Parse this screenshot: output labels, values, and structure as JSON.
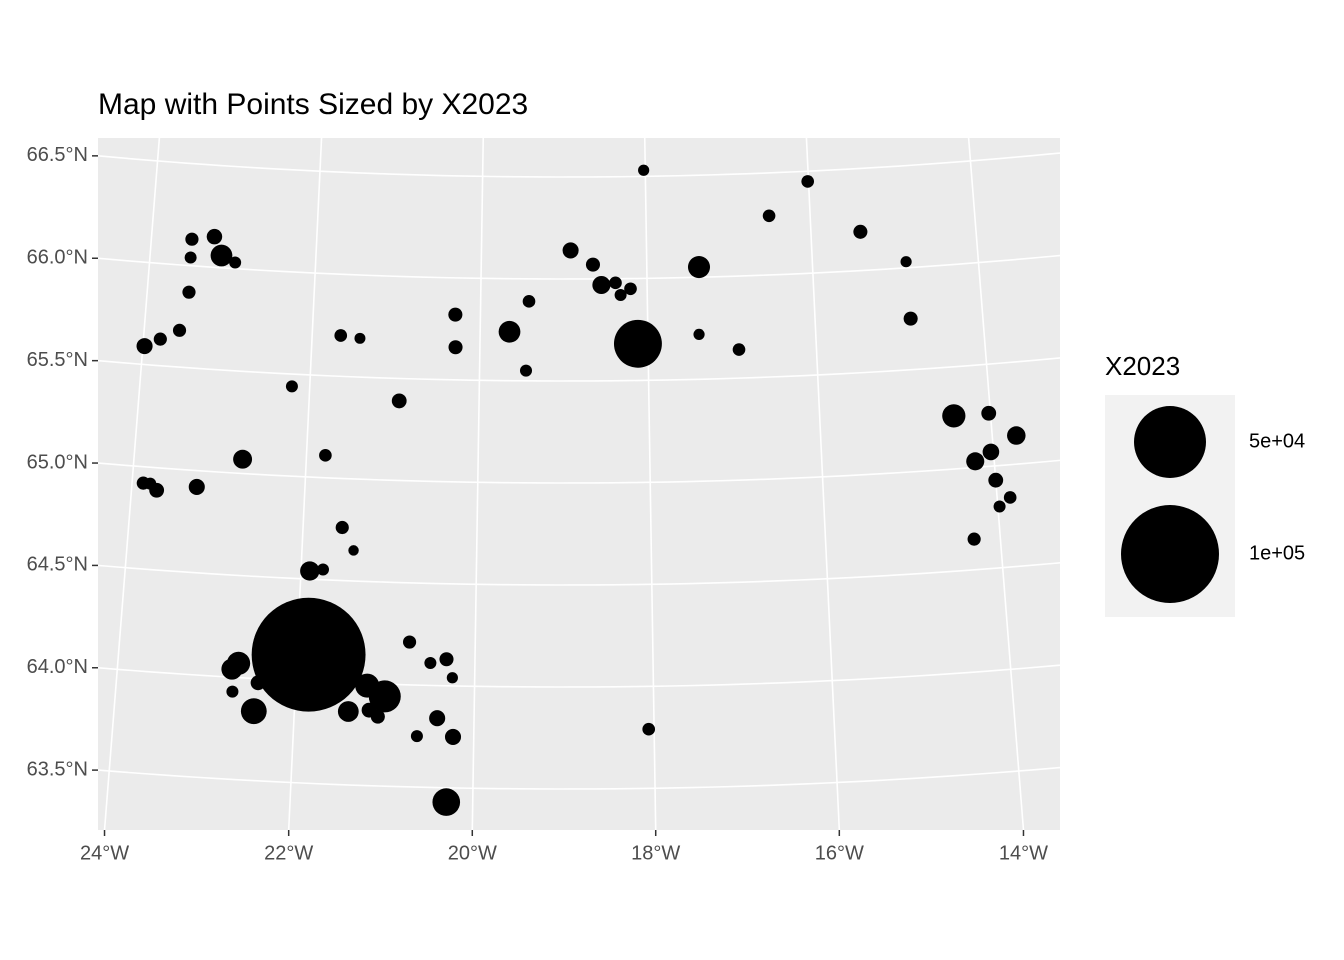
{
  "chart_data": {
    "type": "scatter",
    "title": "Map with Points Sized by X2023",
    "x": [
      -18.02,
      -16.01,
      -16.5,
      -15.4,
      -14.87,
      -14.86,
      -17.37,
      -18.92,
      -18.65,
      -18.55,
      -18.38,
      -18.32,
      -18.2,
      -19.42,
      -19.65,
      -19.45,
      -18.12,
      -17.39,
      -16.92,
      -20.3,
      -20.29,
      -21.66,
      -21.43,
      -20.94,
      -22.21,
      -23.51,
      -23.51,
      -23.5,
      -23.24,
      -23.14,
      -22.97,
      -23.58,
      -23.8,
      -23.98,
      -22.74,
      -21.78,
      -23.25,
      -23.87,
      -23.79,
      -23.71,
      -21.55,
      -21.41,
      -21.9,
      -21.75,
      -21.87,
      -22.65,
      -22.72,
      -22.42,
      -22.7,
      -22.45,
      -21.4,
      -21.2,
      -21.0,
      -21.17,
      -21.07,
      -20.74,
      -20.5,
      -20.32,
      -20.25,
      -20.41,
      -20.63,
      -20.23,
      -20.29,
      -18.06,
      -14.43,
      -14.02,
      -13.72,
      -14.22,
      -14.03,
      -14.0,
      -13.85,
      -13.98,
      -14.3
    ],
    "y": [
      66.53,
      66.45,
      66.29,
      66.19,
      66.03,
      65.75,
      66.05,
      66.14,
      66.07,
      65.97,
      65.98,
      65.92,
      65.95,
      65.89,
      65.74,
      65.55,
      65.68,
      65.72,
      65.64,
      65.82,
      65.66,
      65.7,
      65.69,
      65.39,
      65.44,
      66.13,
      66.04,
      65.87,
      66.15,
      66.06,
      66.03,
      65.68,
      65.63,
      65.59,
      65.07,
      65.11,
      64.92,
      64.92,
      64.92,
      64.89,
      64.76,
      64.65,
      64.54,
      64.55,
      64.13,
      64.07,
      64.04,
      63.98,
      63.93,
      63.84,
      63.86,
      63.99,
      63.94,
      63.87,
      63.84,
      64.21,
      64.11,
      64.13,
      64.04,
      63.84,
      63.75,
      63.75,
      63.43,
      63.79,
      65.26,
      65.26,
      65.14,
      65.03,
      65.07,
      64.93,
      64.84,
      64.8,
      64.65
    ],
    "sizes": [
      50,
      150,
      150,
      300,
      50,
      300,
      2100,
      600,
      300,
      1000,
      150,
      100,
      150,
      150,
      2000,
      100,
      19000,
      50,
      150,
      300,
      300,
      150,
      40,
      400,
      100,
      200,
      100,
      200,
      500,
      2000,
      100,
      200,
      200,
      600,
      1200,
      150,
      600,
      200,
      100,
      400,
      200,
      20,
      1300,
      100,
      139000,
      2500,
      1800,
      400,
      100,
      3500,
      1700,
      2800,
      6600,
      400,
      300,
      200,
      100,
      300,
      50,
      600,
      100,
      600,
      4300,
      150,
      2500,
      400,
      1100,
      1000,
      700,
      400,
      150,
      100,
      200
    ],
    "color": "#000000",
    "xlim": [
      -24.1,
      -13.6
    ],
    "ylim": [
      63.2,
      66.6
    ],
    "xticks": [
      {
        "value": -24,
        "label": "24°W"
      },
      {
        "value": -22,
        "label": "22°W"
      },
      {
        "value": -20,
        "label": "20°W"
      },
      {
        "value": -18,
        "label": "18°W"
      },
      {
        "value": -16,
        "label": "16°W"
      },
      {
        "value": -14,
        "label": "14°W"
      }
    ],
    "yticks": [
      {
        "value": 63.5,
        "label": "63.5°N"
      },
      {
        "value": 64,
        "label": "64.0°N"
      },
      {
        "value": 64.5,
        "label": "64.5°N"
      },
      {
        "value": 65,
        "label": "65.0°N"
      },
      {
        "value": 65.5,
        "label": "65.5°N"
      },
      {
        "value": 66,
        "label": "66.0°N"
      },
      {
        "value": 66.5,
        "label": "66.5°N"
      }
    ],
    "grid": true,
    "size_legend": {
      "title": "X2023",
      "breaks": [
        {
          "value": 50000,
          "label": "5e+04"
        },
        {
          "value": 100000,
          "label": "1e+05"
        }
      ]
    }
  }
}
